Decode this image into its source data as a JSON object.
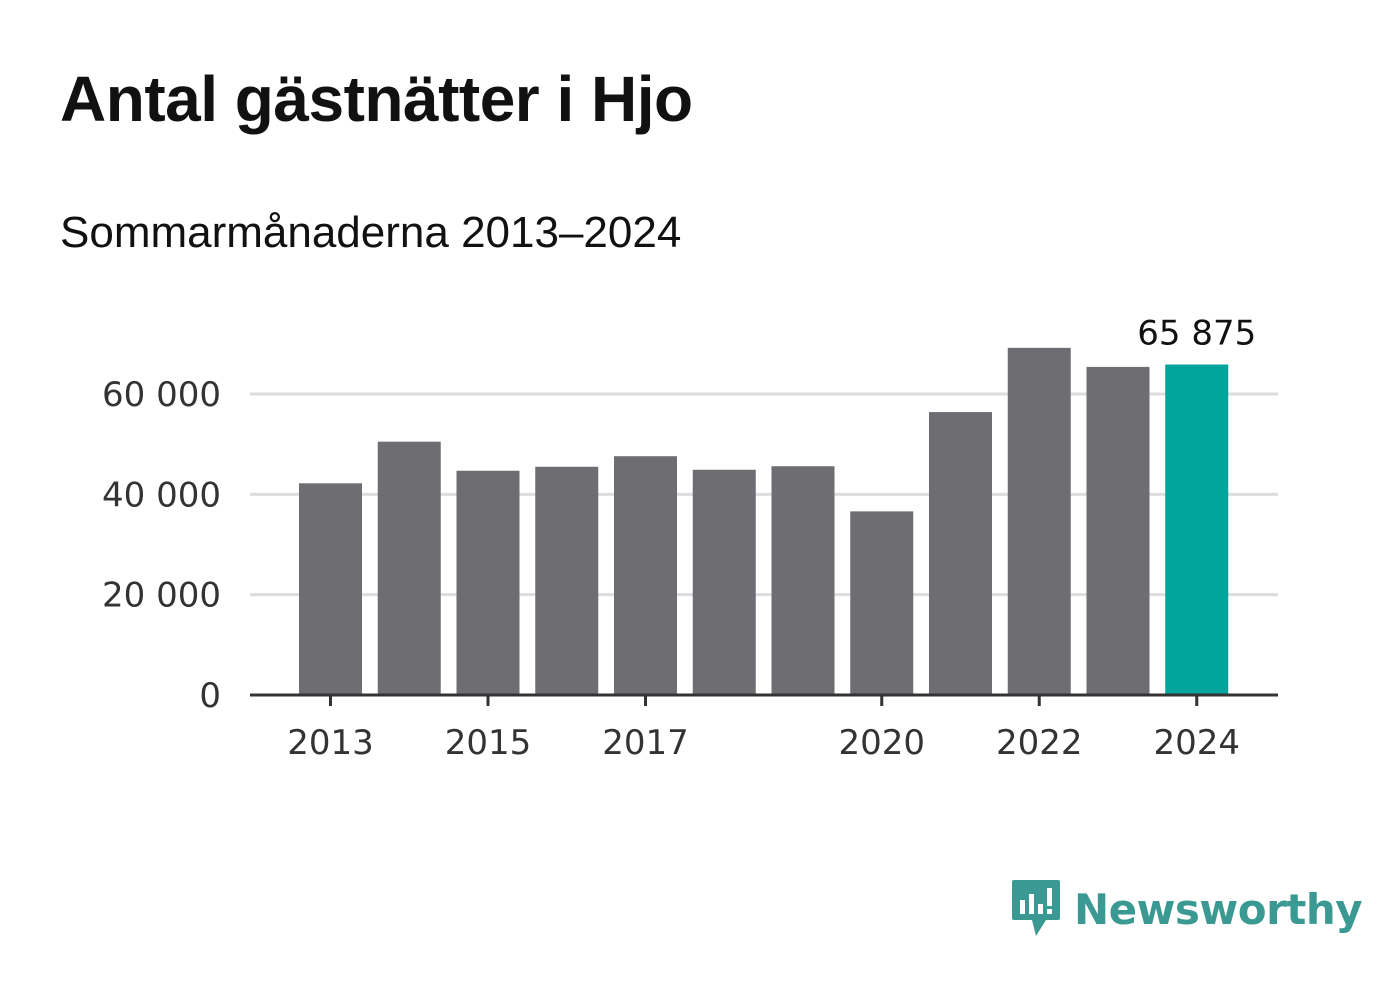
{
  "chart_data": {
    "type": "bar",
    "title": "Antal gästnätter i Hjo",
    "subtitle": "Sommarmånaderna 2013–2024",
    "categories": [
      "2013",
      "2014",
      "2015",
      "2016",
      "2017",
      "2018",
      "2019",
      "2020",
      "2021",
      "2022",
      "2023",
      "2024"
    ],
    "values": [
      42200,
      50500,
      44700,
      45500,
      47600,
      44900,
      45600,
      36600,
      56400,
      69200,
      65400,
      65875
    ],
    "x_tick_labels": [
      "2013",
      "2015",
      "2017",
      "2020",
      "2022",
      "2024"
    ],
    "y_ticks": [
      0,
      20000,
      40000,
      60000
    ],
    "y_tick_labels": [
      "0",
      "20 000",
      "40 000",
      "60 000"
    ],
    "ylim": [
      0,
      75000
    ],
    "highlight_label": "65 875",
    "grid": true,
    "colors": {
      "bar": "#6e6d72",
      "highlight": "#00a49a",
      "grid": "#dddddd",
      "axis": "#333333"
    }
  },
  "brand": {
    "name": "Newsworthy",
    "icon": "newsworthy-logo-icon",
    "color": "#3a9a93"
  }
}
